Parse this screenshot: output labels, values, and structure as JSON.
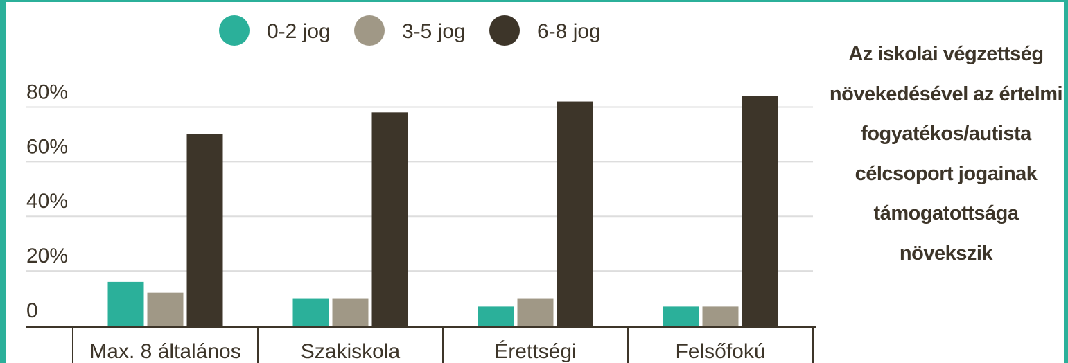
{
  "chart_data": {
    "type": "bar",
    "annotation": "Az iskolai végzettség növekedésével az értelmi fogyatékos/autista célcsoport jogainak támogatottsága növekszik",
    "categories": [
      "Max. 8 általános",
      "Szakiskola",
      "Érettségi",
      "Felsőfokú"
    ],
    "series": [
      {
        "name": "0-2 jog",
        "color": "#2bb09a",
        "values": [
          16,
          10,
          7,
          7
        ]
      },
      {
        "name": "3-5 jog",
        "color": "#a09886",
        "values": [
          12,
          10,
          10,
          7
        ]
      },
      {
        "name": "6-8 jog",
        "color": "#3d3529",
        "values": [
          70,
          78,
          82,
          84
        ]
      }
    ],
    "ylim": [
      0,
      90
    ],
    "yticks": [
      0,
      {
        "value": 20,
        "label": "20%"
      },
      {
        "value": 40,
        "label": "40%"
      },
      {
        "value": 60,
        "label": "60%"
      },
      {
        "value": 80,
        "label": "80%"
      }
    ],
    "grid": true,
    "legend": "top"
  }
}
